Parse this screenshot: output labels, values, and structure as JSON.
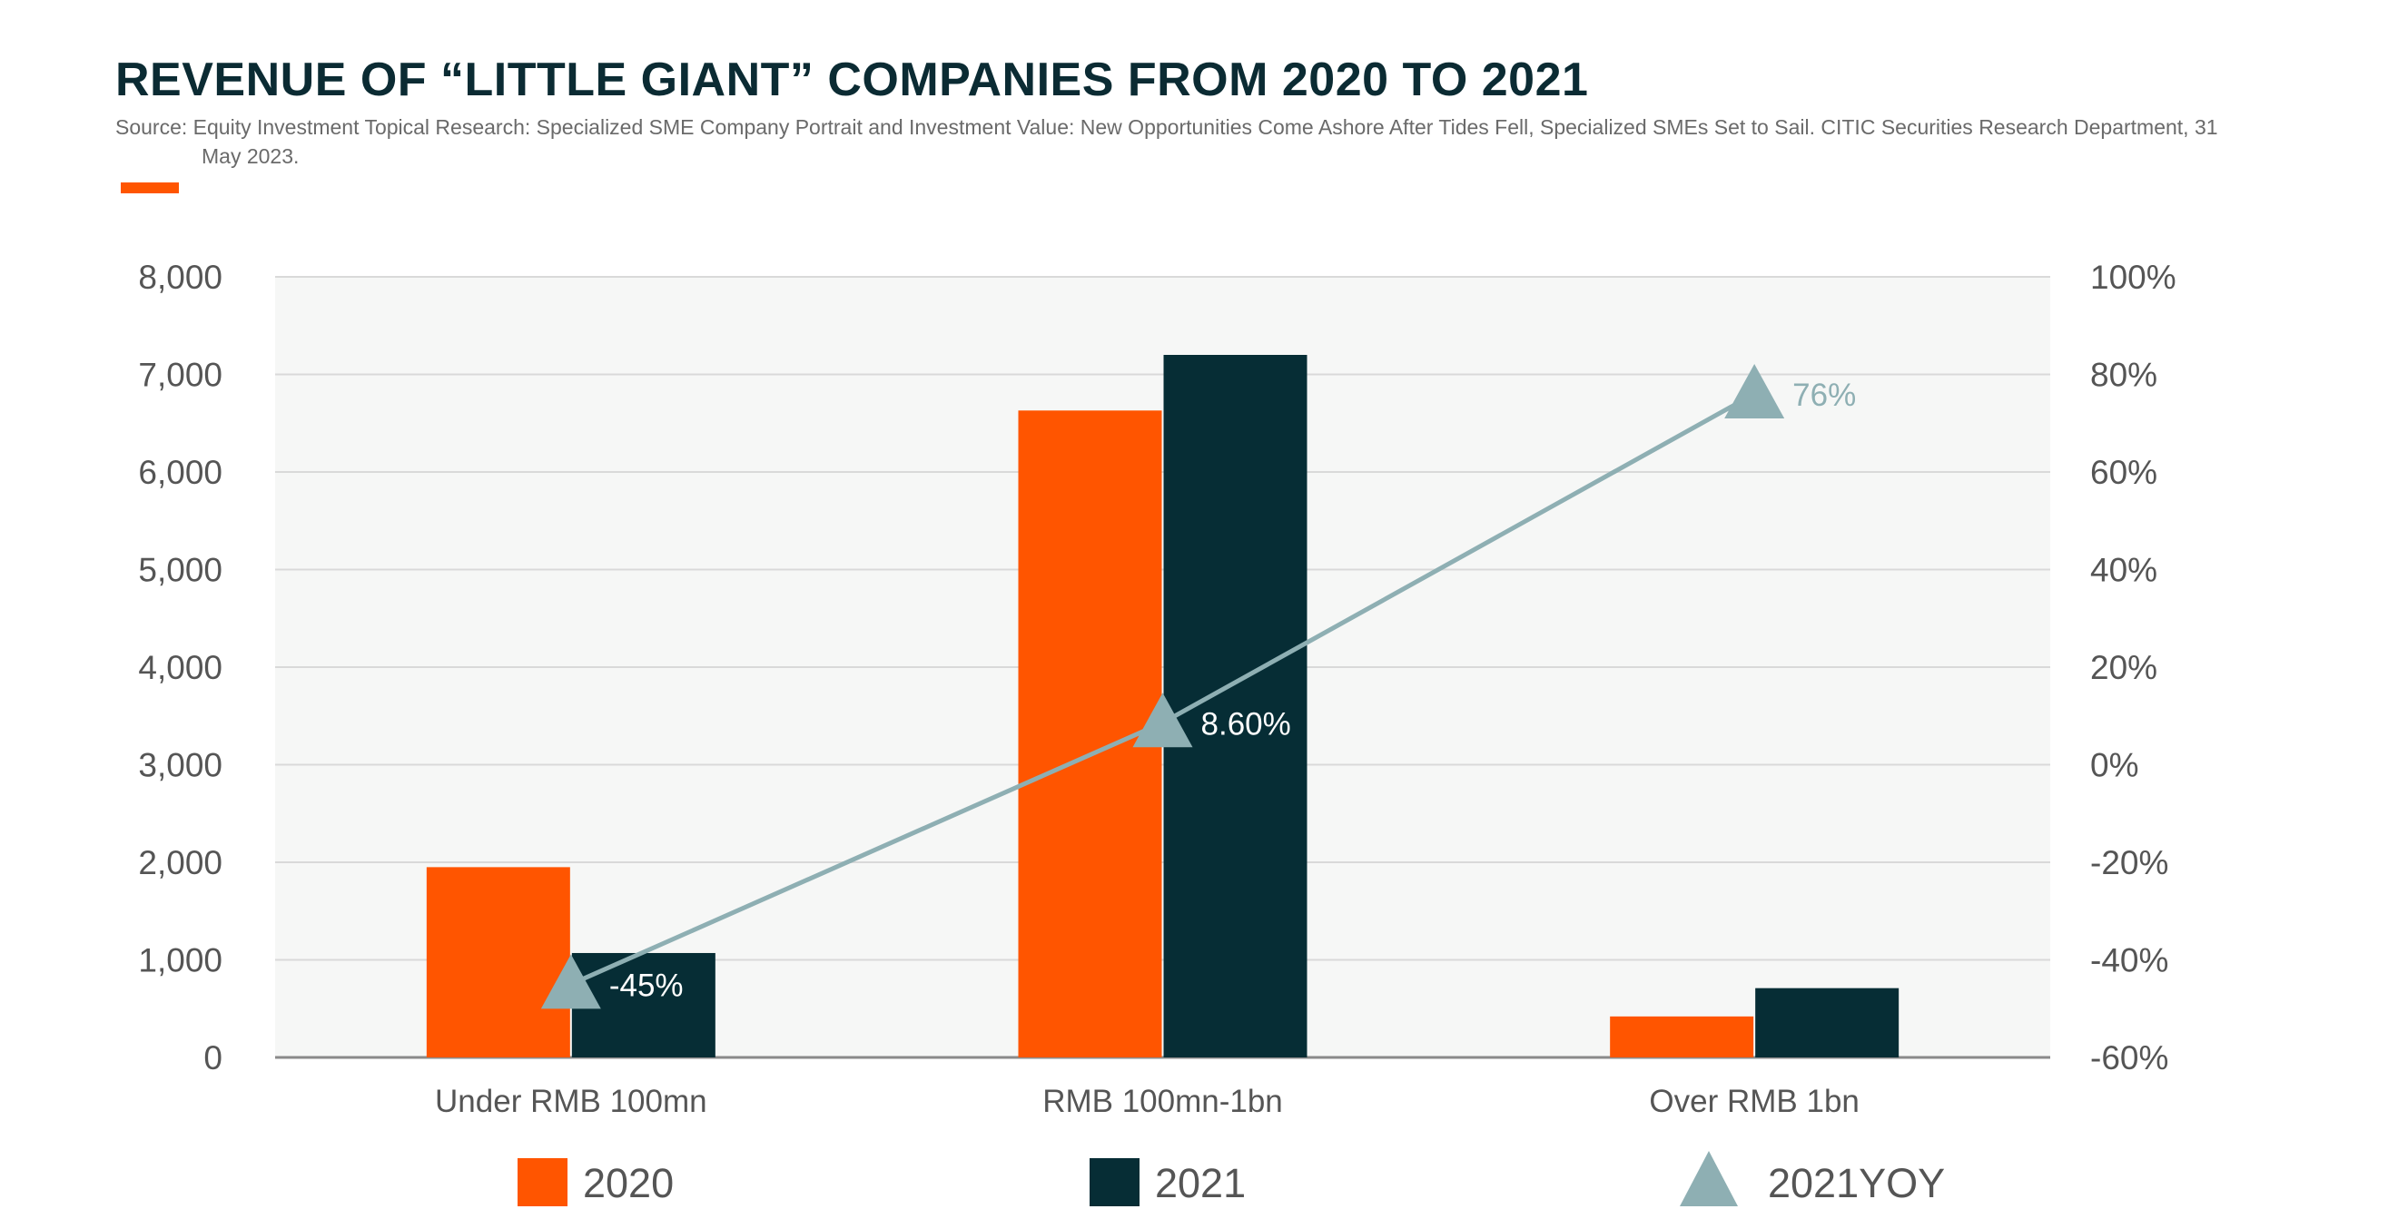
{
  "header": {
    "title": "REVENUE OF “LITTLE GIANT” COMPANIES FROM 2020 TO 2021",
    "source": "Source: Equity Investment Topical Research: Specialized SME Company Portrait and Investment Value: New Opportunities Come Ashore After Tides Fell, Specialized SMEs Set to Sail. CITIC Securities Research Department, 31 May 2023."
  },
  "colors": {
    "accent": "#ff5500",
    "series_2020": "#ff5500",
    "series_2021": "#062d35",
    "yoy": "#8eafb3",
    "plot_bg": "#f6f7f6",
    "gridline": "#d9d9d9",
    "axis": "#8a8a8a",
    "title": "#0b2b33"
  },
  "chart_data": {
    "type": "bar",
    "title": "REVENUE OF “LITTLE GIANT” COMPANIES FROM 2020 TO 2021",
    "categories": [
      "Under RMB 100mn",
      "RMB 100mn-1bn",
      "Over RMB 1bn"
    ],
    "series": [
      {
        "name": "2020",
        "type": "bar",
        "axis": "left",
        "values": [
          1950,
          6630,
          420
        ]
      },
      {
        "name": "2021",
        "type": "bar",
        "axis": "left",
        "values": [
          1070,
          7200,
          710
        ]
      },
      {
        "name": "2021YOY",
        "type": "line",
        "marker": "triangle",
        "axis": "right",
        "values": [
          -45,
          8.6,
          76
        ],
        "labels": [
          "-45%",
          "8.60%",
          "76%"
        ]
      }
    ],
    "y_left": {
      "min": 0,
      "max": 8000,
      "step": 1000,
      "tick_labels": [
        "0",
        "1,000",
        "2,000",
        "3,000",
        "4,000",
        "5,000",
        "6,000",
        "7,000",
        "8,000"
      ]
    },
    "y_right": {
      "min": -60,
      "max": 100,
      "step": 20,
      "tick_labels": [
        "-60%",
        "-40%",
        "-20%",
        "0%",
        "20%",
        "40%",
        "60%",
        "80%",
        "100%"
      ]
    },
    "xlabel": "",
    "ylabel": "",
    "grid": true,
    "legend": {
      "position": "bottom",
      "entries": [
        "2020",
        "2021",
        "2021YOY"
      ]
    }
  }
}
